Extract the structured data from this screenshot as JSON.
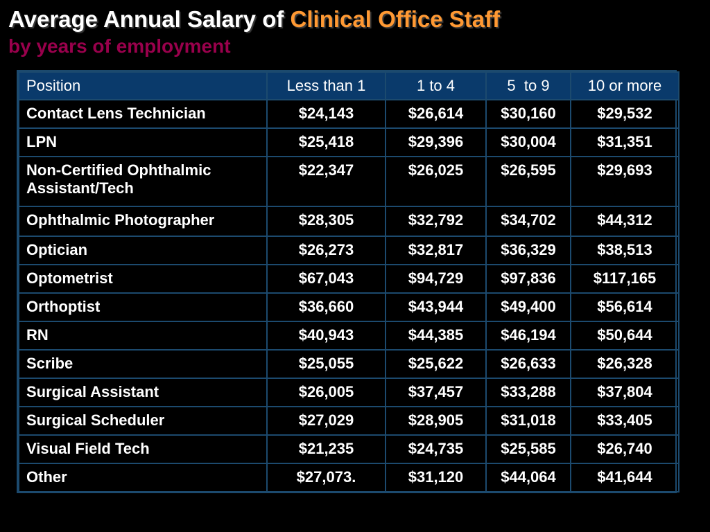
{
  "title": {
    "part1": "Average Annual Salary of ",
    "part2": "Clinical Office Staff",
    "subtitle": "by years of employment"
  },
  "colors": {
    "background": "#000000",
    "title_white": "#ffffff",
    "title_accent": "#ff9933",
    "subtitle": "#99004c",
    "header_bg": "#0a3a6b",
    "grid": "#1c4a6e"
  },
  "table": {
    "headers": [
      "Position",
      "Less than 1",
      "1 to 4",
      "5  to 9",
      "10 or more"
    ],
    "rows": [
      [
        "Contact Lens Technician",
        "$24,143",
        "$26,614",
        "$30,160",
        "$29,532"
      ],
      [
        "LPN",
        "$25,418",
        "$29,396",
        "$30,004",
        "$31,351"
      ],
      [
        "Non-Certified Ophthalmic Assistant/Tech",
        "$22,347",
        "$26,025",
        "$26,595",
        "$29,693"
      ],
      [
        "Ophthalmic Photographer",
        "$28,305",
        "$32,792",
        "$34,702",
        "$44,312"
      ],
      [
        "Optician",
        "$26,273",
        "$32,817",
        "$36,329",
        "$38,513"
      ],
      [
        "Optometrist",
        "$67,043",
        "$94,729",
        "$97,836",
        "$117,165"
      ],
      [
        "Orthoptist",
        "$36,660",
        "$43,944",
        "$49,400",
        "$56,614"
      ],
      [
        "RN",
        "$40,943",
        "$44,385",
        "$46,194",
        "$50,644"
      ],
      [
        "Scribe",
        "$25,055",
        "$25,622",
        "$26,633",
        "$26,328"
      ],
      [
        "Surgical Assistant",
        "$26,005",
        "$37,457",
        "$33,288",
        "$37,804"
      ],
      [
        "Surgical Scheduler",
        "$27,029",
        "$28,905",
        "$31,018",
        "$33,405"
      ],
      [
        "Visual Field Tech",
        "$21,235",
        "$24,735",
        "$25,585",
        "$26,740"
      ],
      [
        "Other",
        "$27,073.",
        "$31,120",
        "$44,064",
        "$41,644"
      ]
    ]
  }
}
